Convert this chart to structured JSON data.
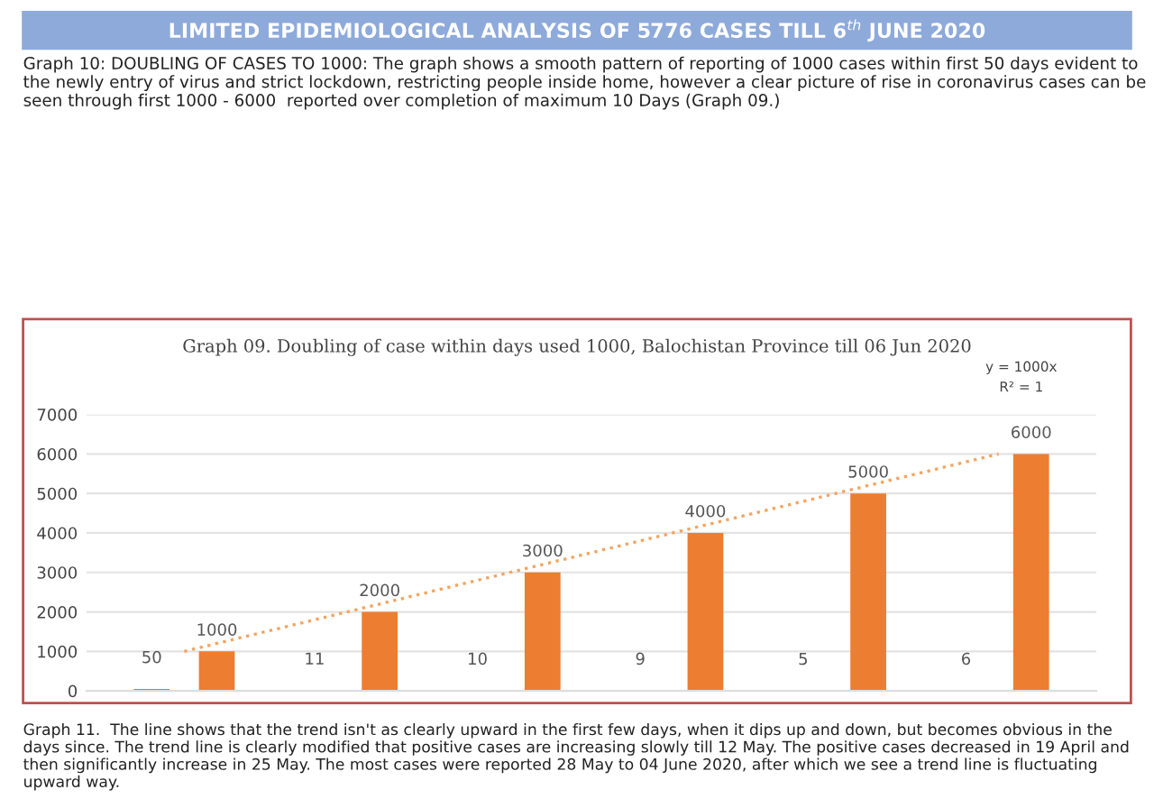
{
  "chart_data": {
    "type": "bar",
    "title": "Graph 09. Doubling of case within days used 1000, Balochistan Province till 06 Jun 2020",
    "categories": [
      null,
      null,
      null,
      null,
      null,
      null
    ],
    "series": [
      {
        "color": "#5b9bd5",
        "values": [
          50,
          11,
          10,
          9,
          5,
          6
        ],
        "value_labels": [
          "50",
          "11",
          "10",
          "9",
          "5",
          "6"
        ]
      },
      {
        "color": "#ed7d31",
        "values": [
          1000,
          2000,
          3000,
          4000,
          5000,
          6000
        ],
        "value_labels": [
          "1000",
          "2000",
          "3000",
          "4000",
          "5000",
          "6000"
        ]
      },
      {
        "type": "line",
        "color": "#f4a460",
        "line_style": "dotted",
        "values": [
          1000,
          2000,
          3000,
          4000,
          5000,
          6000
        ]
      }
    ],
    "ylim": [
      0,
      7000
    ],
    "yticks": [
      0,
      1000,
      2000,
      3000,
      4000,
      5000,
      6000,
      7000
    ],
    "grid": "y",
    "legend": false,
    "annotations": [
      "LIMITED EPIDEMIOLOGICAL ANALYSIS OF 5776 CASES TILL 6$^{th}$ JUNE 2020",
      "Graph 10: DOUBLING OF CASES TO 1000: The graph shows a smooth pattern of reporting of 1000 cases within first 50 days evident to the newly entry of virus and strict lockdown, restricting people inside home, however a clear picture of rise in coronavirus cases can be seen through first 1000 - 6000  reported over completion of maximum 10 Days (Graph 09.)",
      "y = 1000x",
      "R² = 1",
      "Graph 11.  The line shows that the trend isn't as clearly upward in the first few days, when it dips up and down, but becomes obvious in the days since. The trend line is clearly modified that positive cases are increasing slowly till 12 May. The positive cases decreased in 19 April and then significantly increase in 25 May. The most cases were reported 28 May to 04 June 2020, after which we see a trend line is fluctuating upward way."
    ]
  }
}
